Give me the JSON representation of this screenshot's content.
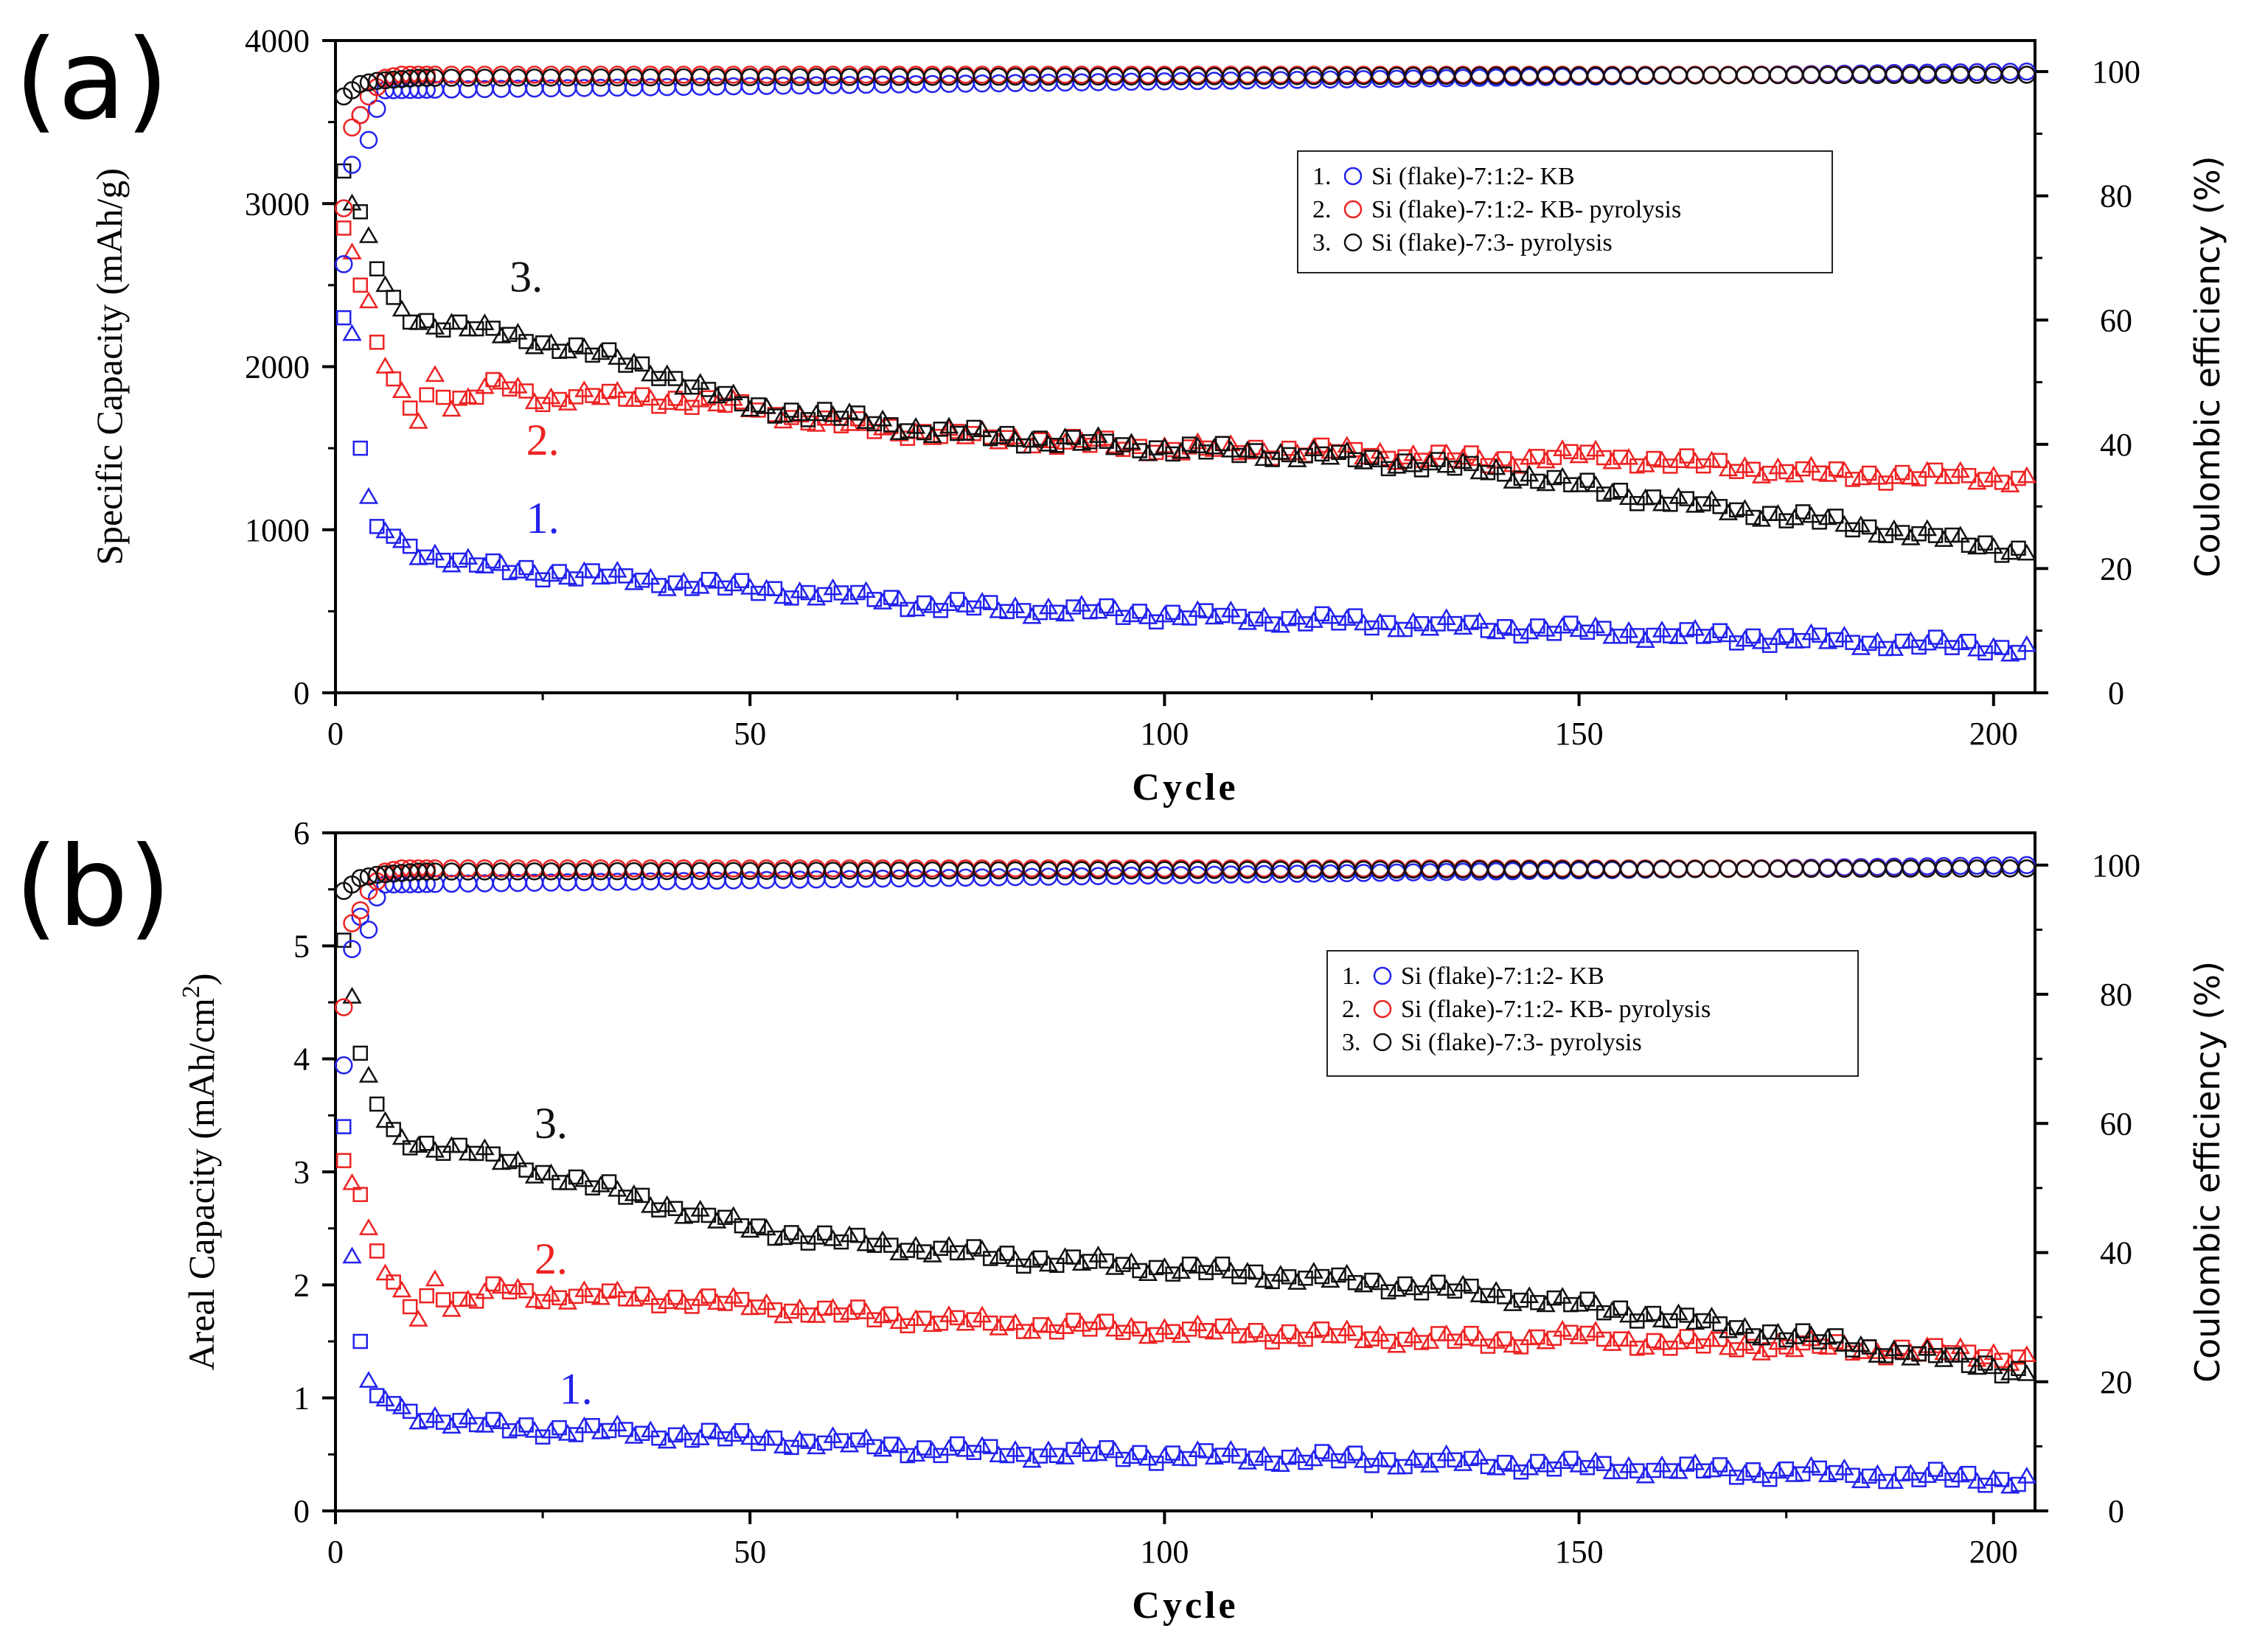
{
  "colors": {
    "series1": "#2222ee",
    "series2": "#ee2222",
    "series3": "#111111"
  },
  "chart_data": [
    {
      "panel_label": "(a)",
      "type": "scatter",
      "xlabel": "Cycle",
      "ylabel": "Specific Capacity (mAh/g)",
      "ylabel_right": "Coulombic efficiency (%)",
      "xlim": [
        0,
        205
      ],
      "ylim": [
        0,
        4000
      ],
      "ylim_right": [
        0,
        105
      ],
      "xticks": [
        "0",
        "50",
        "100",
        "150",
        "200"
      ],
      "yticks": [
        "0",
        "1000",
        "2000",
        "3000",
        "4000"
      ],
      "yticks_right": [
        "0",
        "20",
        "40",
        "60",
        "80",
        "100"
      ],
      "legend": [
        {
          "num": "1.",
          "label": "Si (flake)-7:1:2- KB",
          "series": 1
        },
        {
          "num": "2.",
          "label": "Si (flake)-7:1:2- KB- pyrolysis",
          "series": 2
        },
        {
          "num": "3.",
          "label": "Si (flake)-7:3- pyrolysis",
          "series": 3
        }
      ],
      "annotations": [
        {
          "text": "1.",
          "series": 1,
          "x": 23,
          "y": 980
        },
        {
          "text": "2.",
          "series": 2,
          "x": 23,
          "y": 1460
        },
        {
          "text": "3.",
          "series": 3,
          "x": 21,
          "y": 2460
        }
      ],
      "capacity_series": [
        {
          "name": "Si (flake)-7:1:2- KB",
          "series": 1,
          "x": [
            1,
            2,
            3,
            4,
            5,
            7,
            10,
            15,
            20,
            30,
            40,
            50,
            60,
            68,
            70,
            80,
            100,
            120,
            140,
            160,
            180,
            200,
            204
          ],
          "y": [
            2300,
            2200,
            1500,
            1200,
            1020,
            960,
            870,
            800,
            760,
            720,
            680,
            640,
            600,
            570,
            540,
            520,
            480,
            440,
            400,
            360,
            320,
            280,
            270
          ]
        },
        {
          "name": "Si (flake)-7:1:2- KB- pyrolysis",
          "series": 2,
          "x": [
            1,
            2,
            3,
            4,
            5,
            6,
            8,
            10,
            12,
            14,
            16,
            18,
            20,
            25,
            30,
            40,
            50,
            60,
            70,
            80,
            100,
            120,
            140,
            150,
            160,
            180,
            200,
            204
          ],
          "y": [
            2850,
            2700,
            2500,
            2400,
            2150,
            2000,
            1850,
            1700,
            1950,
            1750,
            1800,
            1850,
            1900,
            1800,
            1820,
            1800,
            1750,
            1650,
            1600,
            1560,
            1500,
            1480,
            1420,
            1460,
            1420,
            1340,
            1320,
            1310
          ]
        },
        {
          "name": "Si (flake)-7:3- pyrolysis",
          "series": 3,
          "x": [
            1,
            2,
            3,
            4,
            5,
            6,
            8,
            10,
            15,
            20,
            30,
            40,
            50,
            60,
            70,
            80,
            100,
            120,
            140,
            160,
            180,
            200,
            204
          ],
          "y": [
            3200,
            3000,
            2950,
            2800,
            2600,
            2500,
            2350,
            2280,
            2250,
            2200,
            2100,
            1950,
            1750,
            1700,
            1620,
            1570,
            1500,
            1450,
            1360,
            1180,
            1050,
            900,
            860
          ]
        }
      ],
      "efficiency_series": [
        {
          "name": "Si (flake)-7:1:2- KB",
          "series": 1,
          "x": [
            1,
            2,
            3,
            4,
            5,
            6,
            204
          ],
          "y": [
            69,
            85,
            93,
            89,
            94,
            97,
            100
          ]
        },
        {
          "name": "Si (flake)-7:1:2- KB- pyrolysis",
          "series": 2,
          "x": [
            1,
            2,
            3,
            4,
            6,
            8,
            204
          ],
          "y": [
            78,
            91,
            93,
            96,
            99,
            99.5,
            99.5
          ]
        },
        {
          "name": "Si (flake)-7:3- pyrolysis",
          "series": 3,
          "x": [
            1,
            2,
            3,
            5,
            10,
            204
          ],
          "y": [
            96,
            97,
            98,
            98.5,
            99,
            99.5
          ]
        }
      ]
    },
    {
      "panel_label": "(b)",
      "type": "scatter",
      "xlabel": "Cycle",
      "ylabel": "Areal Capacity (mAh/cm",
      "ylabel_sup": "2",
      "ylabel_end": ")",
      "ylabel_right": "Coulombic efficiency (%)",
      "xlim": [
        0,
        205
      ],
      "ylim": [
        0,
        6
      ],
      "ylim_right": [
        0,
        105
      ],
      "xticks": [
        "0",
        "50",
        "100",
        "150",
        "200"
      ],
      "yticks": [
        "0",
        "1",
        "2",
        "3",
        "4",
        "5",
        "6"
      ],
      "yticks_right": [
        "0",
        "20",
        "40",
        "60",
        "80",
        "100"
      ],
      "legend": [
        {
          "num": "1.",
          "label": "Si (flake)-7:1:2- KB",
          "series": 1
        },
        {
          "num": "2.",
          "label": "Si (flake)-7:1:2- KB- pyrolysis",
          "series": 2
        },
        {
          "num": "3.",
          "label": "Si (flake)-7:3- pyrolysis",
          "series": 3
        }
      ],
      "annotations": [
        {
          "text": "1.",
          "series": 1,
          "x": 27,
          "y": 0.95
        },
        {
          "text": "2.",
          "series": 2,
          "x": 24,
          "y": 2.1
        },
        {
          "text": "3.",
          "series": 3,
          "x": 24,
          "y": 3.3
        }
      ],
      "capacity_series": [
        {
          "name": "Si (flake)-7:1:2- KB",
          "series": 1,
          "x": [
            1,
            2,
            3,
            4,
            5,
            7,
            10,
            15,
            20,
            30,
            40,
            50,
            60,
            68,
            70,
            80,
            100,
            120,
            140,
            160,
            180,
            200,
            204
          ],
          "y": [
            3.4,
            2.25,
            1.5,
            1.15,
            1.02,
            0.95,
            0.85,
            0.78,
            0.74,
            0.71,
            0.68,
            0.64,
            0.6,
            0.57,
            0.54,
            0.52,
            0.49,
            0.46,
            0.42,
            0.37,
            0.33,
            0.28,
            0.27
          ]
        },
        {
          "name": "Si (flake)-7:1:2- KB- pyrolysis",
          "series": 2,
          "x": [
            1,
            2,
            3,
            4,
            5,
            6,
            8,
            10,
            12,
            14,
            16,
            18,
            20,
            25,
            30,
            40,
            50,
            60,
            70,
            80,
            100,
            120,
            140,
            150,
            160,
            180,
            200,
            204
          ],
          "y": [
            3.1,
            2.9,
            2.8,
            2.5,
            2.3,
            2.1,
            1.95,
            1.75,
            2.05,
            1.8,
            1.85,
            1.9,
            1.98,
            1.9,
            1.9,
            1.88,
            1.82,
            1.75,
            1.7,
            1.65,
            1.6,
            1.55,
            1.5,
            1.55,
            1.48,
            1.45,
            1.38,
            1.35
          ]
        },
        {
          "name": "Si (flake)-7:3- pyrolysis",
          "series": 3,
          "x": [
            1,
            2,
            3,
            4,
            5,
            6,
            8,
            10,
            15,
            20,
            30,
            40,
            50,
            60,
            70,
            80,
            100,
            120,
            140,
            160,
            180,
            200,
            204
          ],
          "y": [
            5.05,
            4.55,
            4.05,
            3.85,
            3.6,
            3.45,
            3.3,
            3.25,
            3.2,
            3.1,
            2.9,
            2.7,
            2.5,
            2.4,
            2.33,
            2.25,
            2.15,
            2.05,
            1.92,
            1.72,
            1.5,
            1.28,
            1.22
          ]
        }
      ],
      "efficiency_series": [
        {
          "name": "Si (flake)-7:1:2- KB",
          "series": 1,
          "x": [
            1,
            2,
            3,
            4,
            5,
            6,
            204
          ],
          "y": [
            69,
            87,
            92,
            90,
            95,
            97,
            100
          ]
        },
        {
          "name": "Si (flake)-7:1:2- KB- pyrolysis",
          "series": 2,
          "x": [
            1,
            2,
            3,
            4,
            6,
            8,
            204
          ],
          "y": [
            78,
            91,
            93,
            96,
            99,
            99.5,
            99.5
          ]
        },
        {
          "name": "Si (flake)-7:3- pyrolysis",
          "series": 3,
          "x": [
            1,
            2,
            3,
            5,
            10,
            204
          ],
          "y": [
            96,
            97,
            98,
            98.5,
            99,
            99.5
          ]
        }
      ]
    }
  ]
}
